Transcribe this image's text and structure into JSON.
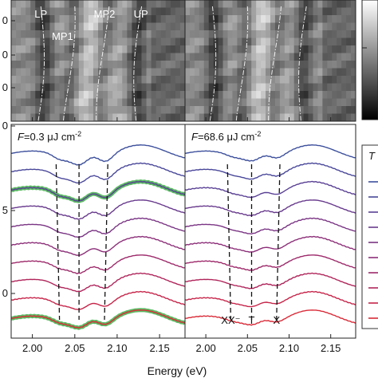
{
  "chart_data": {
    "type": "line",
    "xlabel": "Energy (eV)",
    "xlim": [
      1.975,
      2.18
    ],
    "x_ticks": [
      "2.00",
      "2.05",
      "2.10",
      "2.15"
    ],
    "x_tick_values": [
      2.0,
      2.05,
      2.1,
      2.15
    ],
    "left_y_tick_labels_partial": [
      "0",
      "0",
      "0",
      "0",
      "5",
      "0"
    ],
    "legend_title_partial": "T",
    "grid": false,
    "colorbar": true,
    "panels": [
      {
        "id": "left",
        "label": "F=0.3 μJ cm⁻²",
        "label_var": "F",
        "label_rest": "=0.3 μJ cm",
        "label_sup": "-2",
        "heatmap_lines": [
          {
            "name": "LP",
            "energy": 2.01
          },
          {
            "name": "MP1",
            "energy": 2.045
          },
          {
            "name": "MP2",
            "energy": 2.085
          },
          {
            "name": "UP",
            "energy": 2.128
          }
        ],
        "dashed_guides_energy": [
          2.032,
          2.055,
          2.085
        ],
        "highlighted_series_index": [
          2,
          9
        ],
        "series_count": 10
      },
      {
        "id": "right",
        "label": "F=68.6 μJ cm⁻²",
        "label_var": "F",
        "label_rest": "=68.6 μJ cm",
        "label_sup": "-2",
        "heatmap_lines": [
          {
            "name": "",
            "energy": 2.008
          },
          {
            "name": "",
            "energy": 2.045
          },
          {
            "name": "",
            "energy": 2.085
          },
          {
            "name": "",
            "energy": 2.12
          }
        ],
        "dashed_guides": [
          {
            "name": "XX⁻",
            "energy": 2.03
          },
          {
            "name": "T",
            "energy": 2.055
          },
          {
            "name": "X",
            "energy": 2.085
          }
        ],
        "series_count": 10
      }
    ],
    "series_colors": [
      "#3c4f9c",
      "#49479a",
      "#583f94",
      "#683a8d",
      "#7a3484",
      "#8c2e78",
      "#9d296a",
      "#b0255a",
      "#c62449",
      "#d92a37"
    ],
    "highlight_color": "#3fae49"
  }
}
